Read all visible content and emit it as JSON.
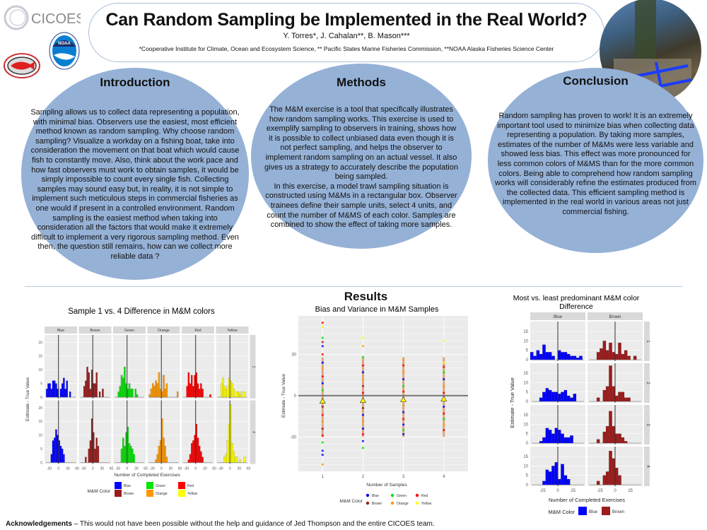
{
  "header": {
    "title": "Can Random Sampling be Implemented in the Real World?",
    "authors": "Y. Torres*, J.  Cahalan**, B. Mason***",
    "affiliations": "*Cooperative Institute for Climate, Ocean and Ecosystem Science, ** Pacific States Marine Fisheries Commission, **NOAA Alaska Fisheries Science Center"
  },
  "logos": {
    "cicoes": "CICOES",
    "noaa": "NOAA",
    "psmfc": "Pacific States Marine Fisheries Commission"
  },
  "sections": {
    "introduction": {
      "heading": "Introduction",
      "body": "Sampling allows us to collect data representing a population, with minimal bias. Observers use the easiest, most efficient method known as random sampling. Why choose random sampling? Visualize a workday on a fishing boat, take into consideration the movement on that boat which would cause fish to constantly move. Also, think about the work pace and how fast observers must work to obtain samples, it would be simply impossible to count every single fish. Collecting samples may sound easy but, in reality, it is not simple to implement such meticulous steps in commercial fisheries as one would if present in a controlled environment. Random sampling is the easiest method when taking into consideration all the factors that would make it extremely difficult to implement a very rigorous sampling method. Even then, the question still remains,  how can we collect more reliable data ?"
    },
    "methods": {
      "heading": "Methods",
      "body": "The M&M exercise is a tool that specifically illustrates how random sampling works. This exercise is used to exemplify sampling to observers in training, shows how it is possible to collect unbiased data even though it is not perfect sampling, and helps the observer to implement random sampling on an actual vessel. It also gives us a strategy to accurately describe the population being sampled.",
      "body2": "In this exercise, a model trawl sampling situation is constructed using M&Ms in a rectangular box. Observer trainees define their sample units, select 4 units, and count the number of M&MS of each color. Samples are combined to show the effect of taking more samples."
    },
    "conclusion": {
      "heading": "Conclusion",
      "body": "Random sampling has proven to work! It is an extremely important tool used to minimize bias when collecting data representing a population. By taking more samples, estimates of the number of M&Ms were less variable and showed less bias. This effect was more pronounced for less common colors of M&MS than for the more common colors. Being able to comprehend how random sampling works will considerably refine the estimates produced from the collected data. This efficient sampling method is implemented in the real world in various areas not just commercial fishing."
    },
    "results": {
      "heading": "Results"
    }
  },
  "acknowledgements": {
    "label": "Acknowledgements",
    "text": " – This would not have been possible without the help and guidance of Jed Thompson and the entire CICOES team."
  },
  "colors": {
    "Blue": "#0000ff",
    "Brown": "#9b1c1c",
    "Green": "#00e600",
    "Orange": "#ff9900",
    "Red": "#ff0000",
    "Yellow": "#ffff00",
    "circle": "#95b1d6",
    "panel": "#ebebeb",
    "strip": "#d9d9d9"
  },
  "chart_data": [
    {
      "type": "bar",
      "title": "Sample 1 vs. 4 Difference in M&M colors",
      "xlabel": "Number of Completed Exercises",
      "ylabel": "Estimate - True Value",
      "xlim": [
        -45,
        60
      ],
      "ylim": [
        0,
        22
      ],
      "xticks": [
        -30,
        0,
        30,
        60
      ],
      "yticks": [
        0,
        5,
        10,
        15,
        20
      ],
      "bin_start": -45,
      "bin_width": 5,
      "facet_cols": [
        "Blue",
        "Brown",
        "Green",
        "Orange",
        "Red",
        "Yellow"
      ],
      "facet_rows": [
        "1",
        "4"
      ],
      "legend_title": "M&M Color",
      "legend": [
        "Blue",
        "Brown",
        "Green",
        "Orange",
        "Red",
        "Yellow"
      ],
      "legend_position": "bottom",
      "series": [
        {
          "row": "1",
          "col": "Blue",
          "values": [
            0,
            3,
            5,
            5,
            3,
            6,
            6,
            5,
            3,
            0,
            3,
            5,
            7,
            3,
            6,
            0,
            2,
            0,
            0,
            0,
            0
          ]
        },
        {
          "row": "1",
          "col": "Brown",
          "values": [
            0,
            0,
            0,
            4,
            6,
            11,
            9,
            3,
            10,
            5,
            5,
            9,
            0,
            2,
            0,
            3,
            0,
            0,
            0,
            0,
            0
          ]
        },
        {
          "row": "1",
          "col": "Green",
          "values": [
            0,
            0,
            0,
            2,
            4,
            8,
            7,
            11,
            5,
            3,
            5,
            3,
            3,
            0,
            3,
            1,
            0,
            0,
            0,
            0,
            0
          ]
        },
        {
          "row": "1",
          "col": "Orange",
          "values": [
            0,
            1,
            3,
            5,
            4,
            6,
            5,
            9,
            3,
            2,
            8,
            3,
            5,
            0,
            0,
            0,
            0,
            0,
            0,
            2,
            0
          ]
        },
        {
          "row": "1",
          "col": "Red",
          "values": [
            0,
            0,
            0,
            4,
            9,
            5,
            8,
            4,
            8,
            9,
            5,
            3,
            5,
            3,
            0,
            0,
            0,
            0,
            1,
            0,
            0
          ]
        },
        {
          "row": "1",
          "col": "Yellow",
          "values": [
            0,
            0,
            0,
            5,
            7,
            4,
            3,
            4,
            7,
            6,
            5,
            3,
            0,
            2,
            2,
            1,
            2,
            0,
            2,
            0,
            0
          ]
        },
        {
          "row": "4",
          "col": "Blue",
          "values": [
            0,
            0,
            0,
            0,
            3,
            8,
            9,
            12,
            10,
            8,
            6,
            5,
            3,
            0,
            0,
            0,
            0,
            0,
            0,
            0,
            0
          ]
        },
        {
          "row": "4",
          "col": "Brown",
          "values": [
            0,
            0,
            0,
            0,
            2,
            0,
            5,
            8,
            16,
            11,
            5,
            9,
            6,
            0,
            0,
            0,
            0,
            0,
            0,
            0,
            0
          ]
        },
        {
          "row": "4",
          "col": "Green",
          "values": [
            0,
            0,
            0,
            0,
            0,
            5,
            9,
            6,
            11,
            13,
            7,
            6,
            5,
            3,
            0,
            0,
            0,
            0,
            0,
            0,
            0
          ]
        },
        {
          "row": "4",
          "col": "Orange",
          "values": [
            0,
            0,
            0,
            0,
            0,
            1,
            3,
            6,
            8,
            16,
            9,
            6,
            2,
            0,
            0,
            0,
            0,
            0,
            0,
            0,
            0
          ]
        },
        {
          "row": "4",
          "col": "Red",
          "values": [
            0,
            0,
            0,
            0,
            1,
            3,
            7,
            8,
            10,
            14,
            9,
            6,
            4,
            2,
            0,
            0,
            0,
            0,
            0,
            0,
            0
          ]
        },
        {
          "row": "4",
          "col": "Yellow",
          "values": [
            0,
            0,
            0,
            0,
            0,
            2,
            3,
            8,
            14,
            21,
            7,
            4,
            2,
            2,
            0,
            1,
            0,
            0,
            2,
            0,
            0
          ]
        }
      ]
    },
    {
      "type": "scatter",
      "title": "Bias and Variance in M&M Samples",
      "xlabel": "Number of Samples",
      "ylabel": "Estimate - True Value",
      "xticks": [
        1,
        2,
        3,
        4
      ],
      "yticks": [
        -30,
        0,
        30
      ],
      "ylim": [
        -55,
        58
      ],
      "legend_title": "M&M Color",
      "legend": [
        "Blue",
        "Green",
        "Red",
        "Brown",
        "Orange",
        "Yellow"
      ],
      "legend_position": "bottom",
      "means": [
        -4,
        -3.5,
        -3,
        -2.5
      ],
      "points": [
        {
          "x": 1,
          "values": [
            [
              53,
              "Red"
            ],
            [
              50,
              "Yellow"
            ],
            [
              42,
              "Green"
            ],
            [
              39,
              "Brown"
            ],
            [
              36,
              "Blue"
            ],
            [
              30,
              "Red"
            ],
            [
              24,
              "Blue"
            ],
            [
              20,
              "Orange"
            ],
            [
              14,
              "Red"
            ],
            [
              9,
              "Blue"
            ],
            [
              4,
              "Green"
            ],
            [
              -2,
              "Orange"
            ],
            [
              -8,
              "Brown"
            ],
            [
              -14,
              "Red"
            ],
            [
              -19,
              "Orange"
            ],
            [
              -24,
              "Brown"
            ],
            [
              -29,
              "Red"
            ],
            [
              -34,
              "Green"
            ],
            [
              -40,
              "Blue"
            ],
            [
              -43,
              "Blue"
            ],
            [
              -50,
              "Orange"
            ]
          ]
        },
        {
          "x": 2,
          "values": [
            [
              42,
              "Yellow"
            ],
            [
              36,
              "Orange"
            ],
            [
              28,
              "Green"
            ],
            [
              22,
              "Red"
            ],
            [
              17,
              "Blue"
            ],
            [
              12,
              "Orange"
            ],
            [
              7,
              "Brown"
            ],
            [
              2,
              "Red"
            ],
            [
              -4,
              "Green"
            ],
            [
              -9,
              "Brown"
            ],
            [
              -14,
              "Blue"
            ],
            [
              -19,
              "Orange"
            ],
            [
              -24,
              "Blue"
            ],
            [
              -28,
              "Red"
            ],
            [
              -33,
              "Blue"
            ],
            [
              -38,
              "Green"
            ]
          ]
        },
        {
          "x": 3,
          "values": [
            [
              26,
              "Orange"
            ],
            [
              22,
              "Red"
            ],
            [
              17,
              "Orange"
            ],
            [
              12,
              "Blue"
            ],
            [
              7,
              "Green"
            ],
            [
              3,
              "Red"
            ],
            [
              -2,
              "Brown"
            ],
            [
              -7,
              "Orange"
            ],
            [
              -12,
              "Blue"
            ],
            [
              -17,
              "Red"
            ],
            [
              -21,
              "Blue"
            ],
            [
              -25,
              "Green"
            ],
            [
              -28,
              "Blue"
            ]
          ]
        },
        {
          "x": 4,
          "values": [
            [
              40,
              "Yellow"
            ],
            [
              24,
              "Yellow"
            ],
            [
              21,
              "Red"
            ],
            [
              17,
              "Green"
            ],
            [
              12,
              "Blue"
            ],
            [
              7,
              "Orange"
            ],
            [
              2,
              "Red"
            ],
            [
              -3,
              "Brown"
            ],
            [
              -8,
              "Blue"
            ],
            [
              -13,
              "Red"
            ],
            [
              -17,
              "Green"
            ],
            [
              -21,
              "Orange"
            ],
            [
              -25,
              "Red"
            ]
          ]
        }
      ]
    },
    {
      "type": "bar",
      "title": "Most vs. least predominant M&M color",
      "title_line2": "Difference",
      "xlabel": "Number of Completed Exercises",
      "ylabel": "Estimate - True Value",
      "xlim": [
        -45,
        45
      ],
      "ylim": [
        0,
        20
      ],
      "xticks": [
        -25,
        0,
        25
      ],
      "yticks": [
        0,
        5,
        10,
        15
      ],
      "bin_start": -45,
      "bin_width": 5,
      "facet_cols": [
        "Blue",
        "Brown"
      ],
      "facet_rows": [
        "1",
        "2",
        "3",
        "4"
      ],
      "legend_title": "M&M Color",
      "legend": [
        "Blue",
        "Brown"
      ],
      "legend_position": "bottom",
      "series": [
        {
          "row": "1",
          "col": "Blue",
          "values": [
            4,
            2,
            5,
            3,
            8,
            4,
            4,
            2,
            0,
            5,
            4,
            4,
            3,
            2,
            2,
            1,
            2,
            0
          ]
        },
        {
          "row": "2",
          "col": "Blue",
          "values": [
            0,
            0,
            0,
            2,
            5,
            7,
            6,
            5,
            5,
            4,
            5,
            6,
            3,
            2,
            4,
            0,
            0,
            0
          ]
        },
        {
          "row": "3",
          "col": "Blue",
          "values": [
            0,
            0,
            0,
            1,
            3,
            8,
            7,
            5,
            8,
            7,
            5,
            3,
            3,
            4,
            0,
            0,
            0,
            0
          ]
        },
        {
          "row": "4",
          "col": "Blue",
          "values": [
            0,
            0,
            0,
            0,
            2,
            8,
            7,
            10,
            12,
            3,
            11,
            5,
            3,
            0,
            0,
            0,
            0,
            0
          ]
        },
        {
          "row": "1",
          "col": "Brown",
          "values": [
            0,
            0,
            0,
            4,
            6,
            10,
            5,
            9,
            4,
            3,
            9,
            3,
            5,
            2,
            0,
            2,
            0,
            0
          ]
        },
        {
          "row": "2",
          "col": "Brown",
          "values": [
            0,
            0,
            0,
            2,
            0,
            6,
            8,
            19,
            8,
            3,
            5,
            5,
            2,
            2,
            0,
            0,
            0,
            0
          ]
        },
        {
          "row": "3",
          "col": "Brown",
          "values": [
            0,
            0,
            0,
            2,
            0,
            6,
            9,
            17,
            9,
            5,
            5,
            3,
            1,
            0,
            0,
            0,
            0,
            0
          ]
        },
        {
          "row": "4",
          "col": "Brown",
          "values": [
            0,
            0,
            0,
            2,
            0,
            5,
            7,
            18,
            14,
            9,
            5,
            0,
            0,
            0,
            0,
            0,
            0,
            0
          ]
        }
      ]
    }
  ]
}
